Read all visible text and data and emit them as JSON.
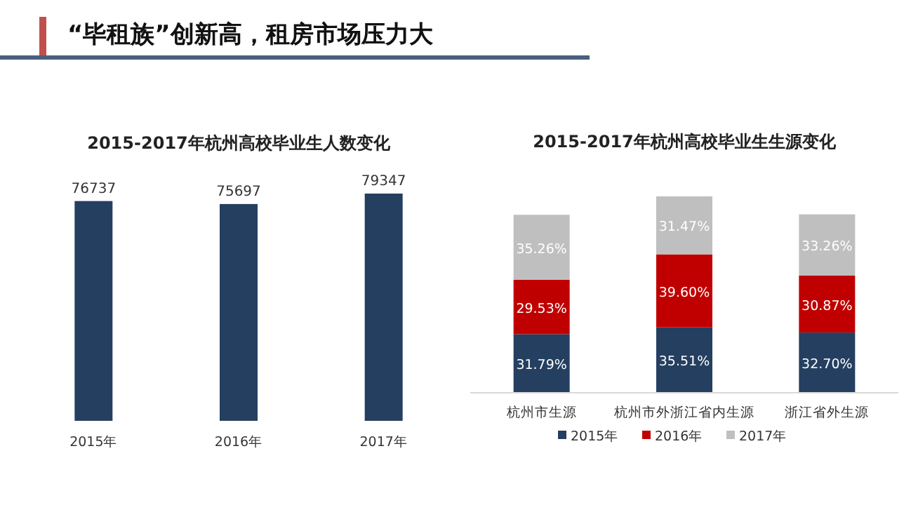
{
  "chart_data": [
    {
      "type": "bar",
      "title": "2015-2017年杭州高校毕业生人数变化",
      "annotations": [
        "“毕租族”创新高，租房市场压力大"
      ],
      "categories": [
        "2015年",
        "2016年",
        "2017年"
      ],
      "values": [
        76737,
        75697,
        79347
      ],
      "color": "#243f60",
      "data_labels": true,
      "grid": false,
      "legend": false
    },
    {
      "type": "bar",
      "title": "2015-2017年杭州高校毕业生生源变化",
      "categories": [
        "杭州市生源",
        "杭州市外浙江省内生源",
        "浙江省外生源"
      ],
      "stacked": true,
      "grid": false,
      "legend": "bottom",
      "series": [
        {
          "name": "2015年",
          "color": "#243f60",
          "values": [
            31.79,
            35.51,
            32.7
          ],
          "value_labels": [
            "31.79%",
            "35.51%",
            "32.70%"
          ]
        },
        {
          "name": "2016年",
          "color": "#c00000",
          "values": [
            29.53,
            39.6,
            30.87
          ],
          "value_labels": [
            "29.53%",
            "39.60%",
            "30.87%"
          ]
        },
        {
          "name": "2017年",
          "color": "#bfbfbf",
          "values": [
            35.26,
            31.47,
            33.26
          ],
          "value_labels": [
            "35.26%",
            "31.47%",
            "33.26%"
          ]
        }
      ]
    }
  ]
}
